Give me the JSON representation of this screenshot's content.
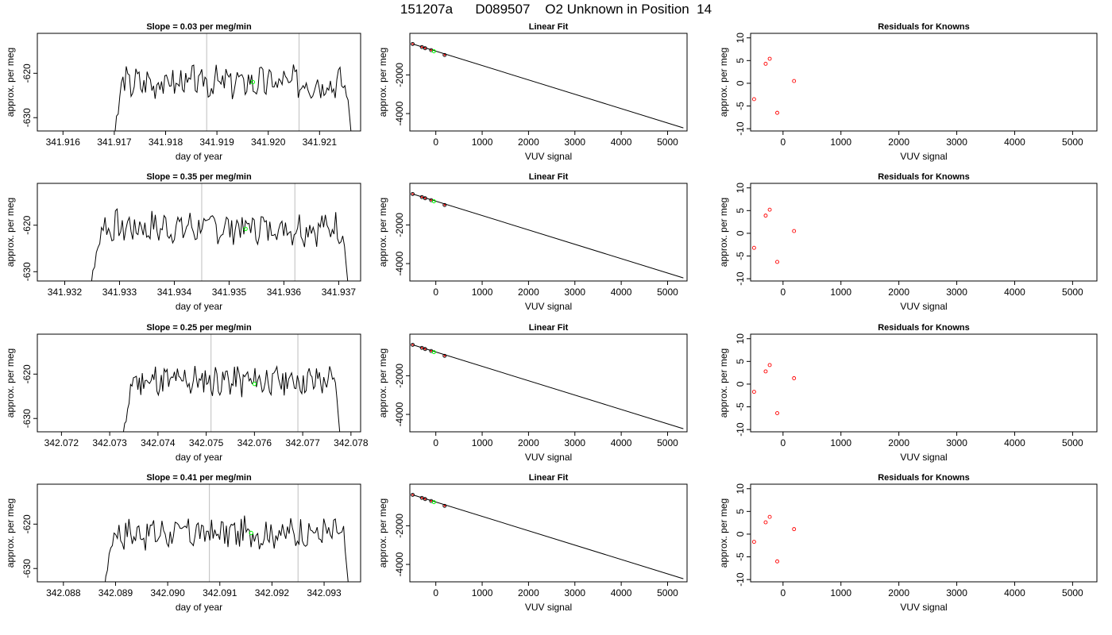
{
  "main_title": "151207a      D089507    O2 Unknown in Position  14",
  "colors": {
    "trace": "#000000",
    "vline": "#bebebe",
    "mean_point": "#00ff00",
    "known_point": "#ff0000"
  },
  "chart_data": [
    {
      "type": "line",
      "title": "Slope =  0.03  per meg/min",
      "xlabel": "day of year",
      "ylabel": "approx. per meg",
      "xlim": [
        341.9155,
        341.9218
      ],
      "ylim": [
        -633,
        -611
      ],
      "xticks": [
        "341.916",
        "341.917",
        "341.918",
        "341.919",
        "341.920",
        "341.921"
      ],
      "xtick_values": [
        341.916,
        341.917,
        341.918,
        341.919,
        341.92,
        341.921
      ],
      "yticks": [
        "-630",
        "-620"
      ],
      "ytick_values": [
        -630,
        -620
      ],
      "vlines": [
        341.9188,
        341.9206
      ],
      "mean_point": {
        "x": 341.9197,
        "y": -622.0
      },
      "trace_start": 341.91695,
      "trace_end": 341.92165,
      "trace_level": -622,
      "trace_seed": 3
    },
    {
      "type": "scatter",
      "title": "Linear Fit",
      "xlabel": "VUV signal",
      "ylabel": "approx. per meg",
      "xlim": [
        -560,
        5420
      ],
      "ylim": [
        -4900,
        150
      ],
      "xticks": [
        "0",
        "1000",
        "2000",
        "3000",
        "4000",
        "5000"
      ],
      "xtick_values": [
        0,
        1000,
        2000,
        3000,
        4000,
        5000
      ],
      "yticks": [
        "-4000",
        "-2000"
      ],
      "ytick_values": [
        -4000,
        -2000
      ],
      "points": [
        {
          "x": -500,
          "y": -400
        },
        {
          "x": -300,
          "y": -560
        },
        {
          "x": -230,
          "y": -620
        },
        {
          "x": -100,
          "y": -720
        },
        {
          "x": 190,
          "y": -970
        }
      ],
      "unknown": {
        "x": -40,
        "y": -780
      },
      "fit_line": [
        {
          "x": -500,
          "y": -400
        },
        {
          "x": 5340,
          "y": -4740
        }
      ]
    },
    {
      "type": "scatter",
      "title": "Residuals for Knowns",
      "xlabel": "VUV signal",
      "ylabel": "approx. per meg",
      "xlim": [
        -560,
        5420
      ],
      "ylim": [
        -10.5,
        11
      ],
      "xticks": [
        "0",
        "1000",
        "2000",
        "3000",
        "4000",
        "5000"
      ],
      "xtick_values": [
        0,
        1000,
        2000,
        3000,
        4000,
        5000
      ],
      "yticks": [
        "-10",
        "-5",
        "0",
        "5",
        "10"
      ],
      "ytick_values": [
        -10,
        -5,
        0,
        5,
        10
      ],
      "points": [
        {
          "x": -500,
          "y": -3.5
        },
        {
          "x": -300,
          "y": 4.3
        },
        {
          "x": -230,
          "y": 5.4
        },
        {
          "x": -100,
          "y": -6.5
        },
        {
          "x": 190,
          "y": 0.5
        }
      ]
    },
    {
      "type": "line",
      "title": "Slope =  0.35  per meg/min",
      "xlabel": "day of year",
      "ylabel": "approx. per meg",
      "xlim": [
        341.9315,
        341.9374
      ],
      "ylim": [
        -632,
        -611
      ],
      "xticks": [
        "341.932",
        "341.933",
        "341.934",
        "341.935",
        "341.936",
        "341.937"
      ],
      "xtick_values": [
        341.932,
        341.933,
        341.934,
        341.935,
        341.936,
        341.937
      ],
      "yticks": [
        "-630",
        "-620"
      ],
      "ytick_values": [
        -630,
        -620
      ],
      "vlines": [
        341.9345,
        341.9362
      ],
      "mean_point": {
        "x": 341.9353,
        "y": -620.8
      },
      "trace_start": 341.93245,
      "trace_end": 341.9372,
      "trace_level": -620.5,
      "trace_seed": 7
    },
    {
      "type": "scatter",
      "title": "Linear Fit",
      "xlabel": "VUV signal",
      "ylabel": "approx. per meg",
      "xlim": [
        -560,
        5420
      ],
      "ylim": [
        -4900,
        150
      ],
      "xticks": [
        "0",
        "1000",
        "2000",
        "3000",
        "4000",
        "5000"
      ],
      "xtick_values": [
        0,
        1000,
        2000,
        3000,
        4000,
        5000
      ],
      "yticks": [
        "-4000",
        "-2000"
      ],
      "ytick_values": [
        -4000,
        -2000
      ],
      "points": [
        {
          "x": -500,
          "y": -400
        },
        {
          "x": -300,
          "y": -560
        },
        {
          "x": -230,
          "y": -620
        },
        {
          "x": -100,
          "y": -720
        },
        {
          "x": 190,
          "y": -970
        }
      ],
      "unknown": {
        "x": -40,
        "y": -780
      },
      "fit_line": [
        {
          "x": -500,
          "y": -400
        },
        {
          "x": 5340,
          "y": -4740
        }
      ]
    },
    {
      "type": "scatter",
      "title": "Residuals for Knowns",
      "xlabel": "VUV signal",
      "ylabel": "approx. per meg",
      "xlim": [
        -560,
        5420
      ],
      "ylim": [
        -10.5,
        11
      ],
      "xticks": [
        "0",
        "1000",
        "2000",
        "3000",
        "4000",
        "5000"
      ],
      "xtick_values": [
        0,
        1000,
        2000,
        3000,
        4000,
        5000
      ],
      "yticks": [
        "-10",
        "-5",
        "0",
        "5",
        "10"
      ],
      "ytick_values": [
        -10,
        -5,
        0,
        5,
        10
      ],
      "points": [
        {
          "x": -500,
          "y": -3.2
        },
        {
          "x": -300,
          "y": 3.9
        },
        {
          "x": -230,
          "y": 5.2
        },
        {
          "x": -100,
          "y": -6.3
        },
        {
          "x": 190,
          "y": 0.5
        }
      ]
    },
    {
      "type": "line",
      "title": "Slope =  0.25  per meg/min",
      "xlabel": "day of year",
      "ylabel": "approx. per meg",
      "xlim": [
        342.0715,
        342.0782
      ],
      "ylim": [
        -633,
        -611
      ],
      "xticks": [
        "342.072",
        "342.073",
        "342.074",
        "342.075",
        "342.076",
        "342.077",
        "342.078"
      ],
      "xtick_values": [
        342.072,
        342.073,
        342.074,
        342.075,
        342.076,
        342.077,
        342.078
      ],
      "yticks": [
        "-630",
        "-620"
      ],
      "ytick_values": [
        -630,
        -620
      ],
      "vlines": [
        342.0751,
        342.0769
      ],
      "mean_point": {
        "x": 342.076,
        "y": -622.2
      },
      "trace_start": 342.07325,
      "trace_end": 342.0778,
      "trace_level": -621.5,
      "trace_seed": 11
    },
    {
      "type": "scatter",
      "title": "Linear Fit",
      "xlabel": "VUV signal",
      "ylabel": "approx. per meg",
      "xlim": [
        -560,
        5420
      ],
      "ylim": [
        -4900,
        150
      ],
      "xticks": [
        "0",
        "1000",
        "2000",
        "3000",
        "4000",
        "5000"
      ],
      "xtick_values": [
        0,
        1000,
        2000,
        3000,
        4000,
        5000
      ],
      "yticks": [
        "-4000",
        "-2000"
      ],
      "ytick_values": [
        -4000,
        -2000
      ],
      "points": [
        {
          "x": -500,
          "y": -400
        },
        {
          "x": -300,
          "y": -560
        },
        {
          "x": -230,
          "y": -620
        },
        {
          "x": -100,
          "y": -720
        },
        {
          "x": 190,
          "y": -970
        }
      ],
      "unknown": {
        "x": -40,
        "y": -780
      },
      "fit_line": [
        {
          "x": -500,
          "y": -400
        },
        {
          "x": 5340,
          "y": -4740
        }
      ]
    },
    {
      "type": "scatter",
      "title": "Residuals for Knowns",
      "xlabel": "VUV signal",
      "ylabel": "approx. per meg",
      "xlim": [
        -560,
        5420
      ],
      "ylim": [
        -10.5,
        11
      ],
      "xticks": [
        "0",
        "1000",
        "2000",
        "3000",
        "4000",
        "5000"
      ],
      "xtick_values": [
        0,
        1000,
        2000,
        3000,
        4000,
        5000
      ],
      "yticks": [
        "-10",
        "-5",
        "0",
        "5",
        "10"
      ],
      "ytick_values": [
        -10,
        -5,
        0,
        5,
        10
      ],
      "points": [
        {
          "x": -500,
          "y": -1.7
        },
        {
          "x": -300,
          "y": 2.8
        },
        {
          "x": -230,
          "y": 4.2
        },
        {
          "x": -100,
          "y": -6.4
        },
        {
          "x": 190,
          "y": 1.3
        }
      ]
    },
    {
      "type": "line",
      "title": "Slope =  0.41  per meg/min",
      "xlabel": "day of year",
      "ylabel": "approx. per meg",
      "xlim": [
        342.0875,
        342.0937
      ],
      "ylim": [
        -633,
        -611
      ],
      "xticks": [
        "342.088",
        "342.089",
        "342.090",
        "342.091",
        "342.092",
        "342.093"
      ],
      "xtick_values": [
        342.088,
        342.089,
        342.09,
        342.091,
        342.092,
        342.093
      ],
      "yticks": [
        "-630",
        "-620"
      ],
      "ytick_values": [
        -630,
        -620
      ],
      "vlines": [
        342.0908,
        342.0925
      ],
      "mean_point": {
        "x": 342.0916,
        "y": -622.0
      },
      "trace_start": 342.08875,
      "trace_end": 342.0935,
      "trace_level": -622,
      "trace_seed": 17
    },
    {
      "type": "scatter",
      "title": "Linear Fit",
      "xlabel": "VUV signal",
      "ylabel": "approx. per meg",
      "xlim": [
        -560,
        5420
      ],
      "ylim": [
        -4900,
        150
      ],
      "xticks": [
        "0",
        "1000",
        "2000",
        "3000",
        "4000",
        "5000"
      ],
      "xtick_values": [
        0,
        1000,
        2000,
        3000,
        4000,
        5000
      ],
      "yticks": [
        "-4000",
        "-2000"
      ],
      "ytick_values": [
        -4000,
        -2000
      ],
      "points": [
        {
          "x": -500,
          "y": -400
        },
        {
          "x": -300,
          "y": -560
        },
        {
          "x": -230,
          "y": -620
        },
        {
          "x": -100,
          "y": -720
        },
        {
          "x": 190,
          "y": -970
        }
      ],
      "unknown": {
        "x": -40,
        "y": -780
      },
      "fit_line": [
        {
          "x": -500,
          "y": -400
        },
        {
          "x": 5340,
          "y": -4740
        }
      ]
    },
    {
      "type": "scatter",
      "title": "Residuals for Knowns",
      "xlabel": "VUV signal",
      "ylabel": "approx. per meg",
      "xlim": [
        -560,
        5420
      ],
      "ylim": [
        -10.5,
        11
      ],
      "xticks": [
        "0",
        "1000",
        "2000",
        "3000",
        "4000",
        "5000"
      ],
      "xtick_values": [
        0,
        1000,
        2000,
        3000,
        4000,
        5000
      ],
      "yticks": [
        "-10",
        "-5",
        "0",
        "5",
        "10"
      ],
      "ytick_values": [
        -10,
        -5,
        0,
        5,
        10
      ],
      "points": [
        {
          "x": -500,
          "y": -1.7
        },
        {
          "x": -300,
          "y": 2.6
        },
        {
          "x": -230,
          "y": 3.8
        },
        {
          "x": -100,
          "y": -6.0
        },
        {
          "x": 190,
          "y": 1.1
        }
      ]
    }
  ]
}
